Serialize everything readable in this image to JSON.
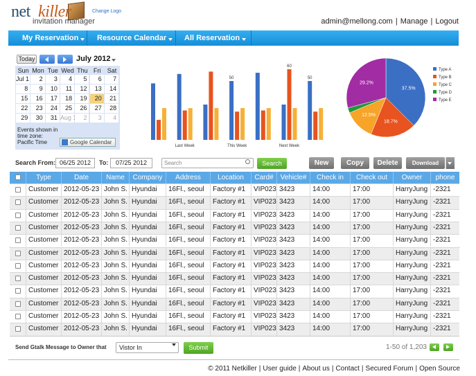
{
  "header": {
    "logo_left": "net",
    "logo_right": "killer",
    "logo_sub": "invitation manager",
    "change_logo": "Change Logo",
    "user": "admin@mellong.com",
    "separator": "|",
    "manage": "Manage",
    "logout": "Logout"
  },
  "nav": [
    "My Reservation",
    "Resource Calendar",
    "All Reservation"
  ],
  "calendar": {
    "today": "Today",
    "month": "July 2012",
    "weekdays": [
      "Sun",
      "Mon",
      "Tue",
      "Wed",
      "Thu",
      "Fri",
      "Sat"
    ],
    "weeks": [
      [
        "Jul 1",
        "2",
        "3",
        "4",
        "5",
        "6",
        "7"
      ],
      [
        "8",
        "9",
        "10",
        "11",
        "12",
        "13",
        "14"
      ],
      [
        "15",
        "16",
        "17",
        "18",
        "19",
        "20",
        "21"
      ],
      [
        "22",
        "23",
        "24",
        "25",
        "26",
        "27",
        "28"
      ],
      [
        "29",
        "30",
        "31",
        "Aug 1",
        "2",
        "3",
        "4"
      ]
    ],
    "timezone_note": "Events shown in time zone: Pacific Time",
    "google_button": "Google Calendar"
  },
  "chart_data": [
    {
      "type": "bar",
      "categories": [
        null,
        "Last Week",
        null,
        "This Week",
        null,
        "Next Week",
        null
      ],
      "series": [
        {
          "color": "#3a6fc4",
          "values": [
            48,
            56,
            30,
            50,
            57,
            30,
            50
          ],
          "value_labels": [
            null,
            null,
            null,
            "50",
            null,
            null,
            "50"
          ]
        },
        {
          "color": "#e8531f",
          "values": [
            17,
            25,
            58,
            24,
            25,
            60,
            24
          ],
          "value_labels": [
            null,
            null,
            null,
            null,
            null,
            "60",
            null
          ]
        },
        {
          "color": "#f7b035",
          "values": [
            27,
            27,
            27,
            27,
            27,
            27,
            27
          ]
        }
      ],
      "ylim": [
        0,
        70
      ]
    },
    {
      "type": "pie",
      "categories": [
        "Type A",
        "Type B",
        "Type C",
        "Type D",
        "Type E"
      ],
      "values": [
        37.5,
        18.7,
        12.5,
        2.1,
        29.2
      ],
      "value_labels": [
        "37.5%",
        "18.7%",
        "12.5%",
        null,
        "29.2%"
      ],
      "colors": [
        "#3a6fc4",
        "#e8531f",
        "#f7a428",
        "#1f9a3c",
        "#a12ca3"
      ],
      "legend": "right"
    }
  ],
  "toolbar": {
    "search_from": "Search From:",
    "from_date": "06/25 2012",
    "to": "To:",
    "to_date": "07/25 2012",
    "search_placeholder": "Search",
    "search_button": "Search",
    "buttons": [
      "New",
      "Copy",
      "Delete",
      "Download"
    ]
  },
  "table": {
    "columns": [
      "Type",
      "Date",
      "Name",
      "Company",
      "Address",
      "Location",
      "Card#",
      "Vehicle#",
      "Check in",
      "Check out",
      "Owner",
      "phone"
    ],
    "rows": [
      [
        "Customer",
        "2012-05-23",
        "John S.",
        "Hyundai",
        "16Fl., seoul",
        "Factory #1",
        "VIP023",
        "3423",
        "14:00",
        "17:00",
        "HarryJung",
        "-2321"
      ],
      [
        "Customer",
        "2012-05-23",
        "John S.",
        "Hyundai",
        "16Fl., seoul",
        "Factory #1",
        "VIP023",
        "3423",
        "14:00",
        "17:00",
        "HarryJung",
        "-2321"
      ],
      [
        "Customer",
        "2012-05-23",
        "John S.",
        "Hyundai",
        "16Fl., seoul",
        "Factory #1",
        "VIP023",
        "3423",
        "14:00",
        "17:00",
        "HarryJung",
        "-2321"
      ],
      [
        "Customer",
        "2012-05-23",
        "John S.",
        "Hyundai",
        "16Fl., seoul",
        "Factory #1",
        "VIP023",
        "3423",
        "14:00",
        "17:00",
        "HarryJung",
        "-2321"
      ],
      [
        "Customer",
        "2012-05-23",
        "John S.",
        "Hyundai",
        "16Fl., seoul",
        "Factory #1",
        "VIP023",
        "3423",
        "14:00",
        "17:00",
        "HarryJung",
        "-2321"
      ],
      [
        "Customer",
        "2012-05-23",
        "John S.",
        "Hyundai",
        "16Fl., seoul",
        "Factory #1",
        "VIP023",
        "3423",
        "14:00",
        "17:00",
        "HarryJung",
        "-2321"
      ],
      [
        "Customer",
        "2012-05-23",
        "John S.",
        "Hyundai",
        "16Fl., seoul",
        "Factory #1",
        "VIP023",
        "3423",
        "14:00",
        "17:00",
        "HarryJung",
        "-2321"
      ],
      [
        "Customer",
        "2012-05-23",
        "John S.",
        "Hyundai",
        "16Fl., seoul",
        "Factory #1",
        "VIP023",
        "3423",
        "14:00",
        "17:00",
        "HarryJung",
        "-2321"
      ],
      [
        "Customer",
        "2012-05-23",
        "John S.",
        "Hyundai",
        "16Fl., seoul",
        "Factory #1",
        "VIP023",
        "3423",
        "14:00",
        "17:00",
        "HarryJung",
        "-2321"
      ],
      [
        "Customer",
        "2012-05-23",
        "John S.",
        "Hyundai",
        "16Fl., seoul",
        "Factory #1",
        "VIP023",
        "3423",
        "14:00",
        "17:00",
        "HarryJung",
        "-2321"
      ],
      [
        "Customer",
        "2012-05-23",
        "John S.",
        "Hyundai",
        "16Fl., seoul",
        "Factory #1",
        "VIP023",
        "3423",
        "14:00",
        "17:00",
        "HarryJung",
        "-2321"
      ],
      [
        "Customer",
        "2012-05-23",
        "John S.",
        "Hyundai",
        "16Fl., seoul",
        "Factory #1",
        "VIP023",
        "3423",
        "14:00",
        "17:00",
        "HarryJung",
        "-2321"
      ]
    ]
  },
  "footer": {
    "message_label": "Send Gtalk Message to Owner that",
    "select": "Vistor In",
    "submit": "Submit",
    "pagination": "1-50 of 1,203",
    "copyright": "© 2011 Netkiller",
    "separator": "|",
    "links": [
      "User guide",
      "About us",
      "Contact",
      "Secured Forum",
      "Open Source"
    ]
  }
}
